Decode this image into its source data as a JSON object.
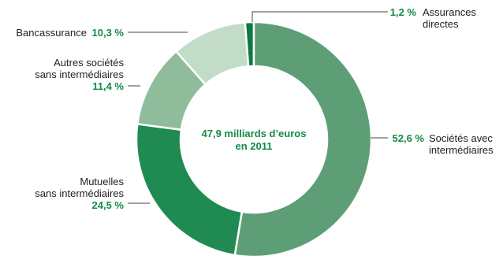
{
  "chart_data": {
    "type": "pie",
    "donut": true,
    "center_text": [
      "47,9 milliards d’euros",
      "en 2011"
    ],
    "accent_color": "#138a45",
    "slices": [
      {
        "label_lines": [
          "Assurances",
          "directes"
        ],
        "pct_label": "1,2 %",
        "value": 1.2,
        "color": "#0f7a3e"
      },
      {
        "label_lines": [
          "Sociétés avec",
          "intermédiaires"
        ],
        "pct_label": "52,6 %",
        "value": 52.6,
        "color": "#5e9e76"
      },
      {
        "label_lines": [
          "Mutuelles",
          "sans intermédiaires"
        ],
        "pct_label": "24,5 %",
        "value": 24.5,
        "color": "#1f8a52"
      },
      {
        "label_lines": [
          "Autres sociétés",
          "sans intermédiaires"
        ],
        "pct_label": "11,4 %",
        "value": 11.4,
        "color": "#8fbc9b"
      },
      {
        "label_lines": [
          "Bancassurance"
        ],
        "pct_label": "10,3 %",
        "value": 10.3,
        "color": "#c2dcc8"
      }
    ]
  }
}
